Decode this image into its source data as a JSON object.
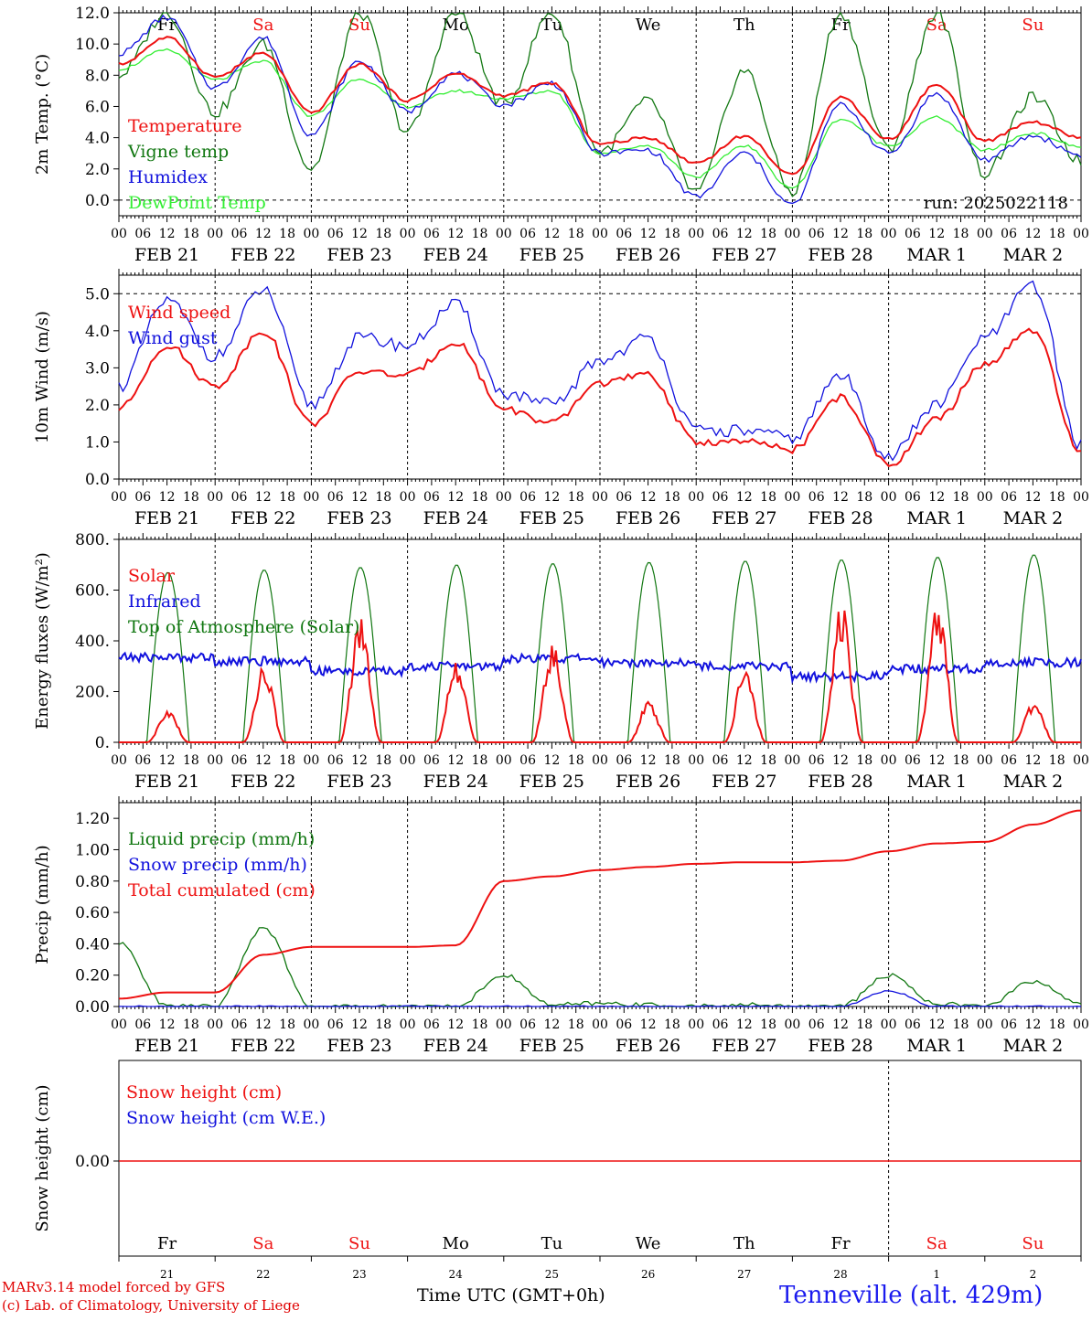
{
  "run_label": "run: 2025022118",
  "station": "Tenneville (alt. 429m)",
  "time_label": "Time UTC (GMT+0h)",
  "credit_line1": "MARv3.14 model forced by GFS",
  "credit_line2": "(c) Lab. of Climatology, University of Liege",
  "colors": {
    "red": "#ee1111",
    "green": "#117711",
    "blue": "#1111dd",
    "lightgreen": "#33ee33"
  },
  "weekdays": [
    {
      "label": "Fr",
      "weekend": false
    },
    {
      "label": "Sa",
      "weekend": true
    },
    {
      "label": "Su",
      "weekend": true
    },
    {
      "label": "Mo",
      "weekend": false
    },
    {
      "label": "Tu",
      "weekend": false
    },
    {
      "label": "We",
      "weekend": false
    },
    {
      "label": "Th",
      "weekend": false
    },
    {
      "label": "Fr",
      "weekend": false
    },
    {
      "label": "Sa",
      "weekend": true
    },
    {
      "label": "Su",
      "weekend": true
    }
  ],
  "day_numbers": [
    "21",
    "22",
    "23",
    "24",
    "25",
    "26",
    "27",
    "28",
    "1",
    "2"
  ],
  "date_labels": [
    "FEB 21",
    "FEB 22",
    "FEB 23",
    "FEB 24",
    "FEB 25",
    "FEB 26",
    "FEB 27",
    "FEB 28",
    "MAR  1",
    "MAR  2"
  ],
  "hour_ticks": [
    "00",
    "06",
    "12",
    "18"
  ],
  "chart_data": [
    {
      "type": "line",
      "ylabel": "2m Temp. (°C)",
      "ylim": [
        -1.0,
        12.0
      ],
      "yticks": [
        "0.0",
        "2.0",
        "4.0",
        "6.0",
        "8.0",
        "10.0",
        "12.0"
      ],
      "x": [
        "2025-02-21 00",
        "2025-02-21 12",
        "2025-02-22 00",
        "2025-02-22 12",
        "2025-02-23 00",
        "2025-02-23 12",
        "2025-02-24 00",
        "2025-02-24 12",
        "2025-02-25 00",
        "2025-02-25 12",
        "2025-02-26 00",
        "2025-02-26 12",
        "2025-02-27 00",
        "2025-02-27 12",
        "2025-02-28 00",
        "2025-02-28 12",
        "2025-03-01 00",
        "2025-03-01 12",
        "2025-03-02 00",
        "2025-03-02 12",
        "2025-03-03 00"
      ],
      "series": [
        {
          "name": "Temperature",
          "color": "red",
          "values": [
            8.7,
            10.4,
            7.9,
            9.4,
            5.6,
            8.7,
            6.4,
            8.1,
            6.7,
            7.5,
            3.6,
            4.0,
            2.4,
            4.1,
            1.6,
            6.6,
            3.9,
            7.4,
            3.8,
            5.0,
            4.0
          ]
        },
        {
          "name": "Vigne temp",
          "color": "green",
          "values": [
            8.0,
            12.0,
            5.6,
            10.0,
            2.0,
            12.0,
            4.4,
            12.0,
            6.1,
            12.0,
            3.1,
            6.3,
            0.5,
            8.3,
            0.5,
            12.0,
            3.3,
            12.0,
            1.7,
            6.6,
            2.5
          ]
        },
        {
          "name": "Humidex",
          "color": "blue",
          "values": [
            9.4,
            11.7,
            7.2,
            10.4,
            4.2,
            8.9,
            5.7,
            8.1,
            6.1,
            7.5,
            3.0,
            3.2,
            0.2,
            3.0,
            -0.3,
            6.1,
            3.0,
            6.8,
            2.6,
            4.1,
            2.9
          ]
        },
        {
          "name": "DewPoint Temp",
          "color": "lightgreen",
          "values": [
            8.4,
            9.6,
            7.7,
            8.9,
            5.4,
            7.8,
            6.0,
            7.0,
            6.5,
            7.0,
            3.0,
            3.5,
            1.5,
            3.5,
            0.8,
            5.2,
            3.5,
            5.3,
            3.2,
            4.3,
            3.4
          ]
        }
      ]
    },
    {
      "type": "line",
      "ylabel": "10m Wind (m/s)",
      "ylim": [
        0.0,
        5.5
      ],
      "yticks": [
        "0.0",
        "1.0",
        "2.0",
        "3.0",
        "4.0",
        "5.0"
      ],
      "x": [
        "2025-02-21 00",
        "2025-02-21 12",
        "2025-02-22 00",
        "2025-02-22 12",
        "2025-02-23 00",
        "2025-02-23 12",
        "2025-02-24 00",
        "2025-02-24 12",
        "2025-02-25 00",
        "2025-02-25 12",
        "2025-02-26 00",
        "2025-02-26 12",
        "2025-02-27 00",
        "2025-02-27 12",
        "2025-02-28 00",
        "2025-02-28 12",
        "2025-03-01 00",
        "2025-03-01 12",
        "2025-03-02 00",
        "2025-03-02 12",
        "2025-03-03 00"
      ],
      "series": [
        {
          "name": "Wind speed",
          "color": "red",
          "values": [
            1.9,
            3.6,
            2.5,
            4.0,
            1.5,
            2.9,
            2.8,
            3.7,
            1.9,
            1.5,
            2.6,
            2.8,
            1.0,
            1.0,
            0.8,
            2.2,
            0.4,
            1.6,
            3.1,
            4.0,
            0.7
          ]
        },
        {
          "name": "Wind gust",
          "color": "blue",
          "values": [
            2.5,
            4.8,
            3.3,
            5.1,
            2.0,
            3.8,
            3.6,
            4.7,
            2.3,
            2.0,
            3.2,
            3.8,
            1.3,
            1.3,
            1.1,
            2.8,
            0.6,
            2.0,
            3.8,
            5.2,
            0.9
          ]
        }
      ]
    },
    {
      "type": "line",
      "ylabel": "Energy fluxes (W/m²)",
      "ylim": [
        0,
        800
      ],
      "yticks": [
        "0.",
        "200.",
        "400.",
        "600.",
        "800."
      ],
      "peaks_day_index": [
        0,
        1,
        2,
        3,
        4,
        5,
        6,
        7,
        8,
        9
      ],
      "series": [
        {
          "name": "Solar",
          "color": "red",
          "daily_peak": [
            120,
            280,
            460,
            290,
            360,
            150,
            270,
            500,
            510,
            150
          ]
        },
        {
          "name": "Infrared",
          "color": "blue",
          "daily_mean": [
            335,
            320,
            280,
            300,
            330,
            315,
            300,
            260,
            290,
            315
          ]
        },
        {
          "name": "Top of Atmosphere (Solar)",
          "color": "green",
          "daily_peak": [
            670,
            680,
            690,
            700,
            705,
            710,
            715,
            720,
            730,
            740
          ]
        }
      ]
    },
    {
      "type": "line",
      "ylabel": "Precip (mm/h)",
      "ylim": [
        0.0,
        1.3
      ],
      "yticks": [
        "0.00",
        "0.20",
        "0.40",
        "0.60",
        "0.80",
        "1.00",
        "1.20"
      ],
      "x": [
        "2025-02-21 00",
        "2025-02-21 12",
        "2025-02-22 00",
        "2025-02-22 12",
        "2025-02-23 00",
        "2025-02-23 12",
        "2025-02-24 00",
        "2025-02-24 12",
        "2025-02-25 00",
        "2025-02-25 12",
        "2025-02-26 00",
        "2025-02-26 12",
        "2025-02-27 00",
        "2025-02-27 12",
        "2025-02-28 00",
        "2025-02-28 12",
        "2025-03-01 00",
        "2025-03-01 12",
        "2025-03-02 00",
        "2025-03-02 12",
        "2025-03-03 00"
      ],
      "series": [
        {
          "name": "Liquid precip (mm/h)",
          "color": "green",
          "values": [
            0.4,
            0.0,
            0.0,
            0.5,
            0.0,
            0.0,
            0.0,
            0.0,
            0.2,
            0.01,
            0.02,
            0.01,
            0.0,
            0.01,
            0.0,
            0.0,
            0.2,
            0.02,
            0.0,
            0.16,
            0.02
          ]
        },
        {
          "name": "Snow precip (mm/h)",
          "color": "blue",
          "values": [
            0.0,
            0.0,
            0.0,
            0.0,
            0.0,
            0.0,
            0.0,
            0.0,
            0.0,
            0.0,
            0.0,
            0.0,
            0.0,
            0.0,
            0.0,
            0.0,
            0.1,
            0.0,
            0.0,
            0.0,
            0.0
          ]
        },
        {
          "name": "Total cumulated (cm)",
          "color": "red",
          "values": [
            0.05,
            0.09,
            0.09,
            0.33,
            0.38,
            0.38,
            0.38,
            0.39,
            0.8,
            0.83,
            0.87,
            0.89,
            0.91,
            0.92,
            0.92,
            0.93,
            0.99,
            1.04,
            1.05,
            1.16,
            1.25
          ]
        }
      ]
    },
    {
      "type": "line",
      "ylabel": "Snow height (cm)",
      "yticks": [
        "0.00"
      ],
      "series": [
        {
          "name": "Snow height (cm)",
          "color": "red",
          "values": [
            0.0,
            0.0
          ]
        },
        {
          "name": "Snow height (cm W.E.)",
          "color": "blue",
          "values": [
            0.0,
            0.0
          ]
        }
      ]
    }
  ]
}
